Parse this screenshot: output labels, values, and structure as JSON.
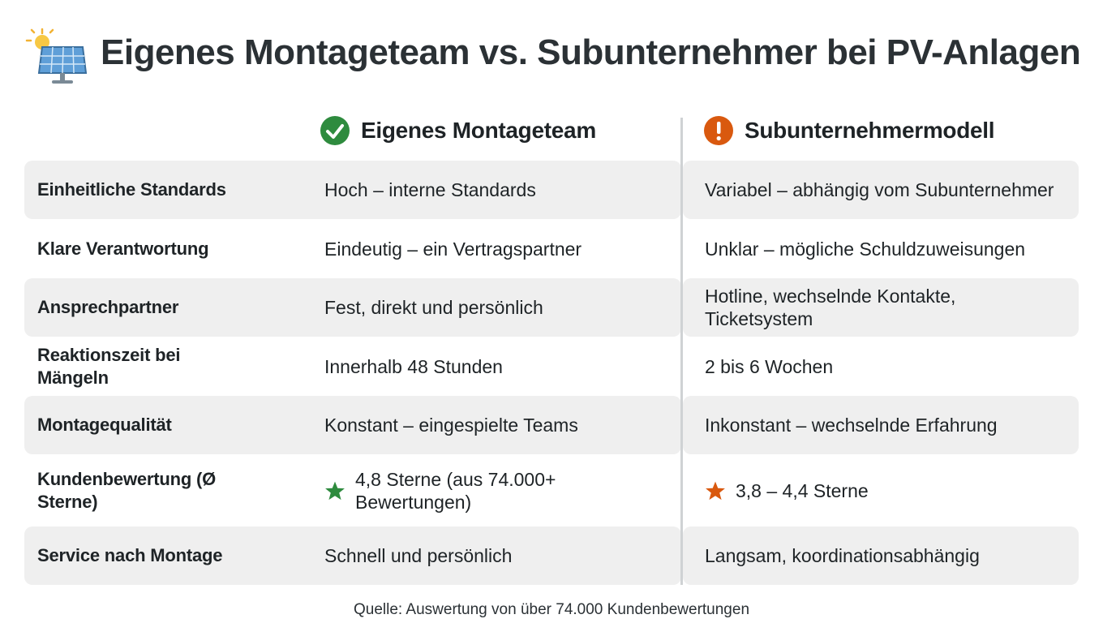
{
  "header": {
    "title": "Eigenes Montageteam vs. Subunternehmer bei PV-Anlagen"
  },
  "table": {
    "columns": [
      "Eigenes Montageteam",
      "Subunternehmermodell"
    ],
    "rows": [
      [
        "Einheitliche Standards",
        "Hoch – interne Standards",
        "Variabel – abhängig vom Subunternehmer"
      ],
      [
        "Klare Verantwortung",
        "Eindeutig – ein Vertragspartner",
        "Unklar – mögliche Schuldzuweisungen"
      ],
      [
        "Ansprechpartner",
        "Fest, direkt und persönlich",
        "Hotline, wechselnde Kontakte, Ticketsystem"
      ],
      [
        "Reaktionszeit bei Mängeln",
        "Innerhalb 48 Stunden",
        "2 bis 6 Wochen"
      ],
      [
        "Montagequalität",
        "Konstant – eingespielte Teams",
        "Inkonstant – wechselnde Erfahrung"
      ],
      [
        "Kundenbewertung (Ø Sterne)",
        "4,8 Sterne (aus 74.000+ Bewertungen)",
        "3,8 – 4,4 Sterne"
      ],
      [
        "Service nach Montage",
        "Schnell und persönlich",
        "Langsam, koordinationsabhängig"
      ]
    ]
  },
  "footer": {
    "source": "Quelle: Auswertung von über 74.000 Kundenbewertungen"
  }
}
